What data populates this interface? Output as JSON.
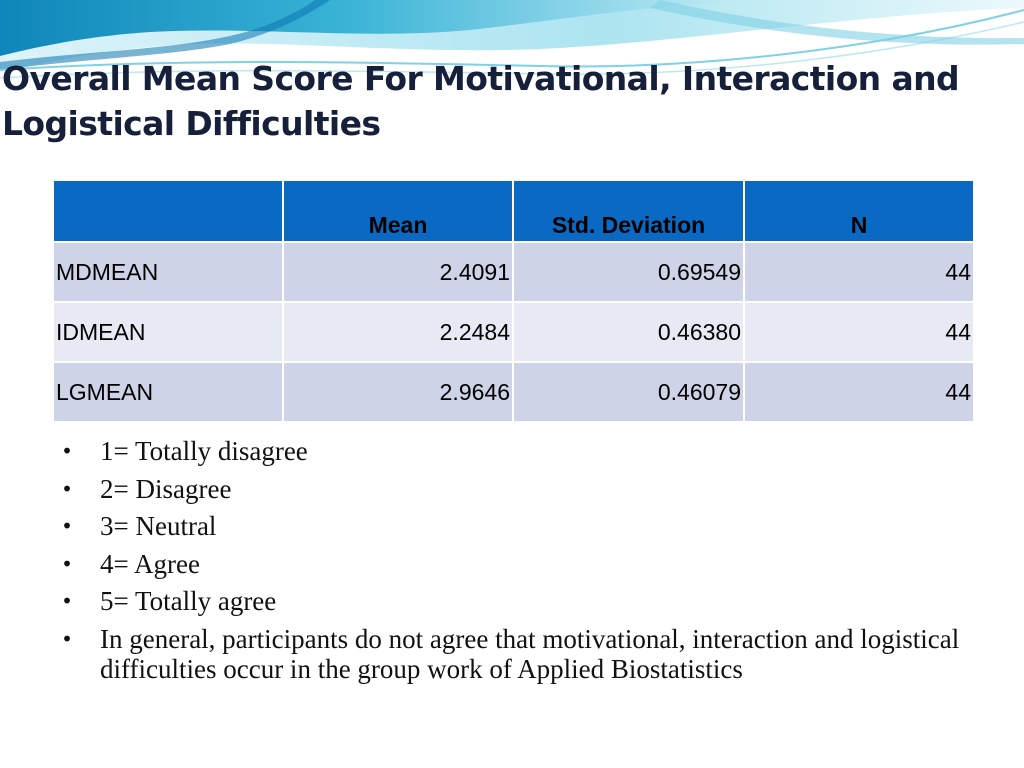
{
  "title": "Overall Mean Score For Motivational, Interaction and Logistical Difficulties",
  "table": {
    "headers": [
      "",
      "Mean",
      "Std. Deviation",
      "N"
    ],
    "rows": [
      {
        "label": "MDMEAN",
        "mean": "2.4091",
        "std": "0.69549",
        "n": "44"
      },
      {
        "label": "IDMEAN",
        "mean": "2.2484",
        "std": "0.46380",
        "n": "44"
      },
      {
        "label": "LGMEAN",
        "mean": "2.9646",
        "std": "0.46079",
        "n": "44"
      }
    ]
  },
  "bullets": [
    "1= Totally disagree",
    "2= Disagree",
    "3= Neutral",
    "4= Agree",
    "5= Totally agree",
    "In general, participants do not agree that motivational, interaction and logistical difficulties occur in the group work of Applied Biostatistics"
  ],
  "bullet_glyph": "•",
  "colors": {
    "title_text": "#16203a",
    "table_header": "#0a6ac3",
    "row_dark": "#ced3e8",
    "row_light": "#e7eaf4",
    "wave_accent": "#5fc3dd"
  }
}
